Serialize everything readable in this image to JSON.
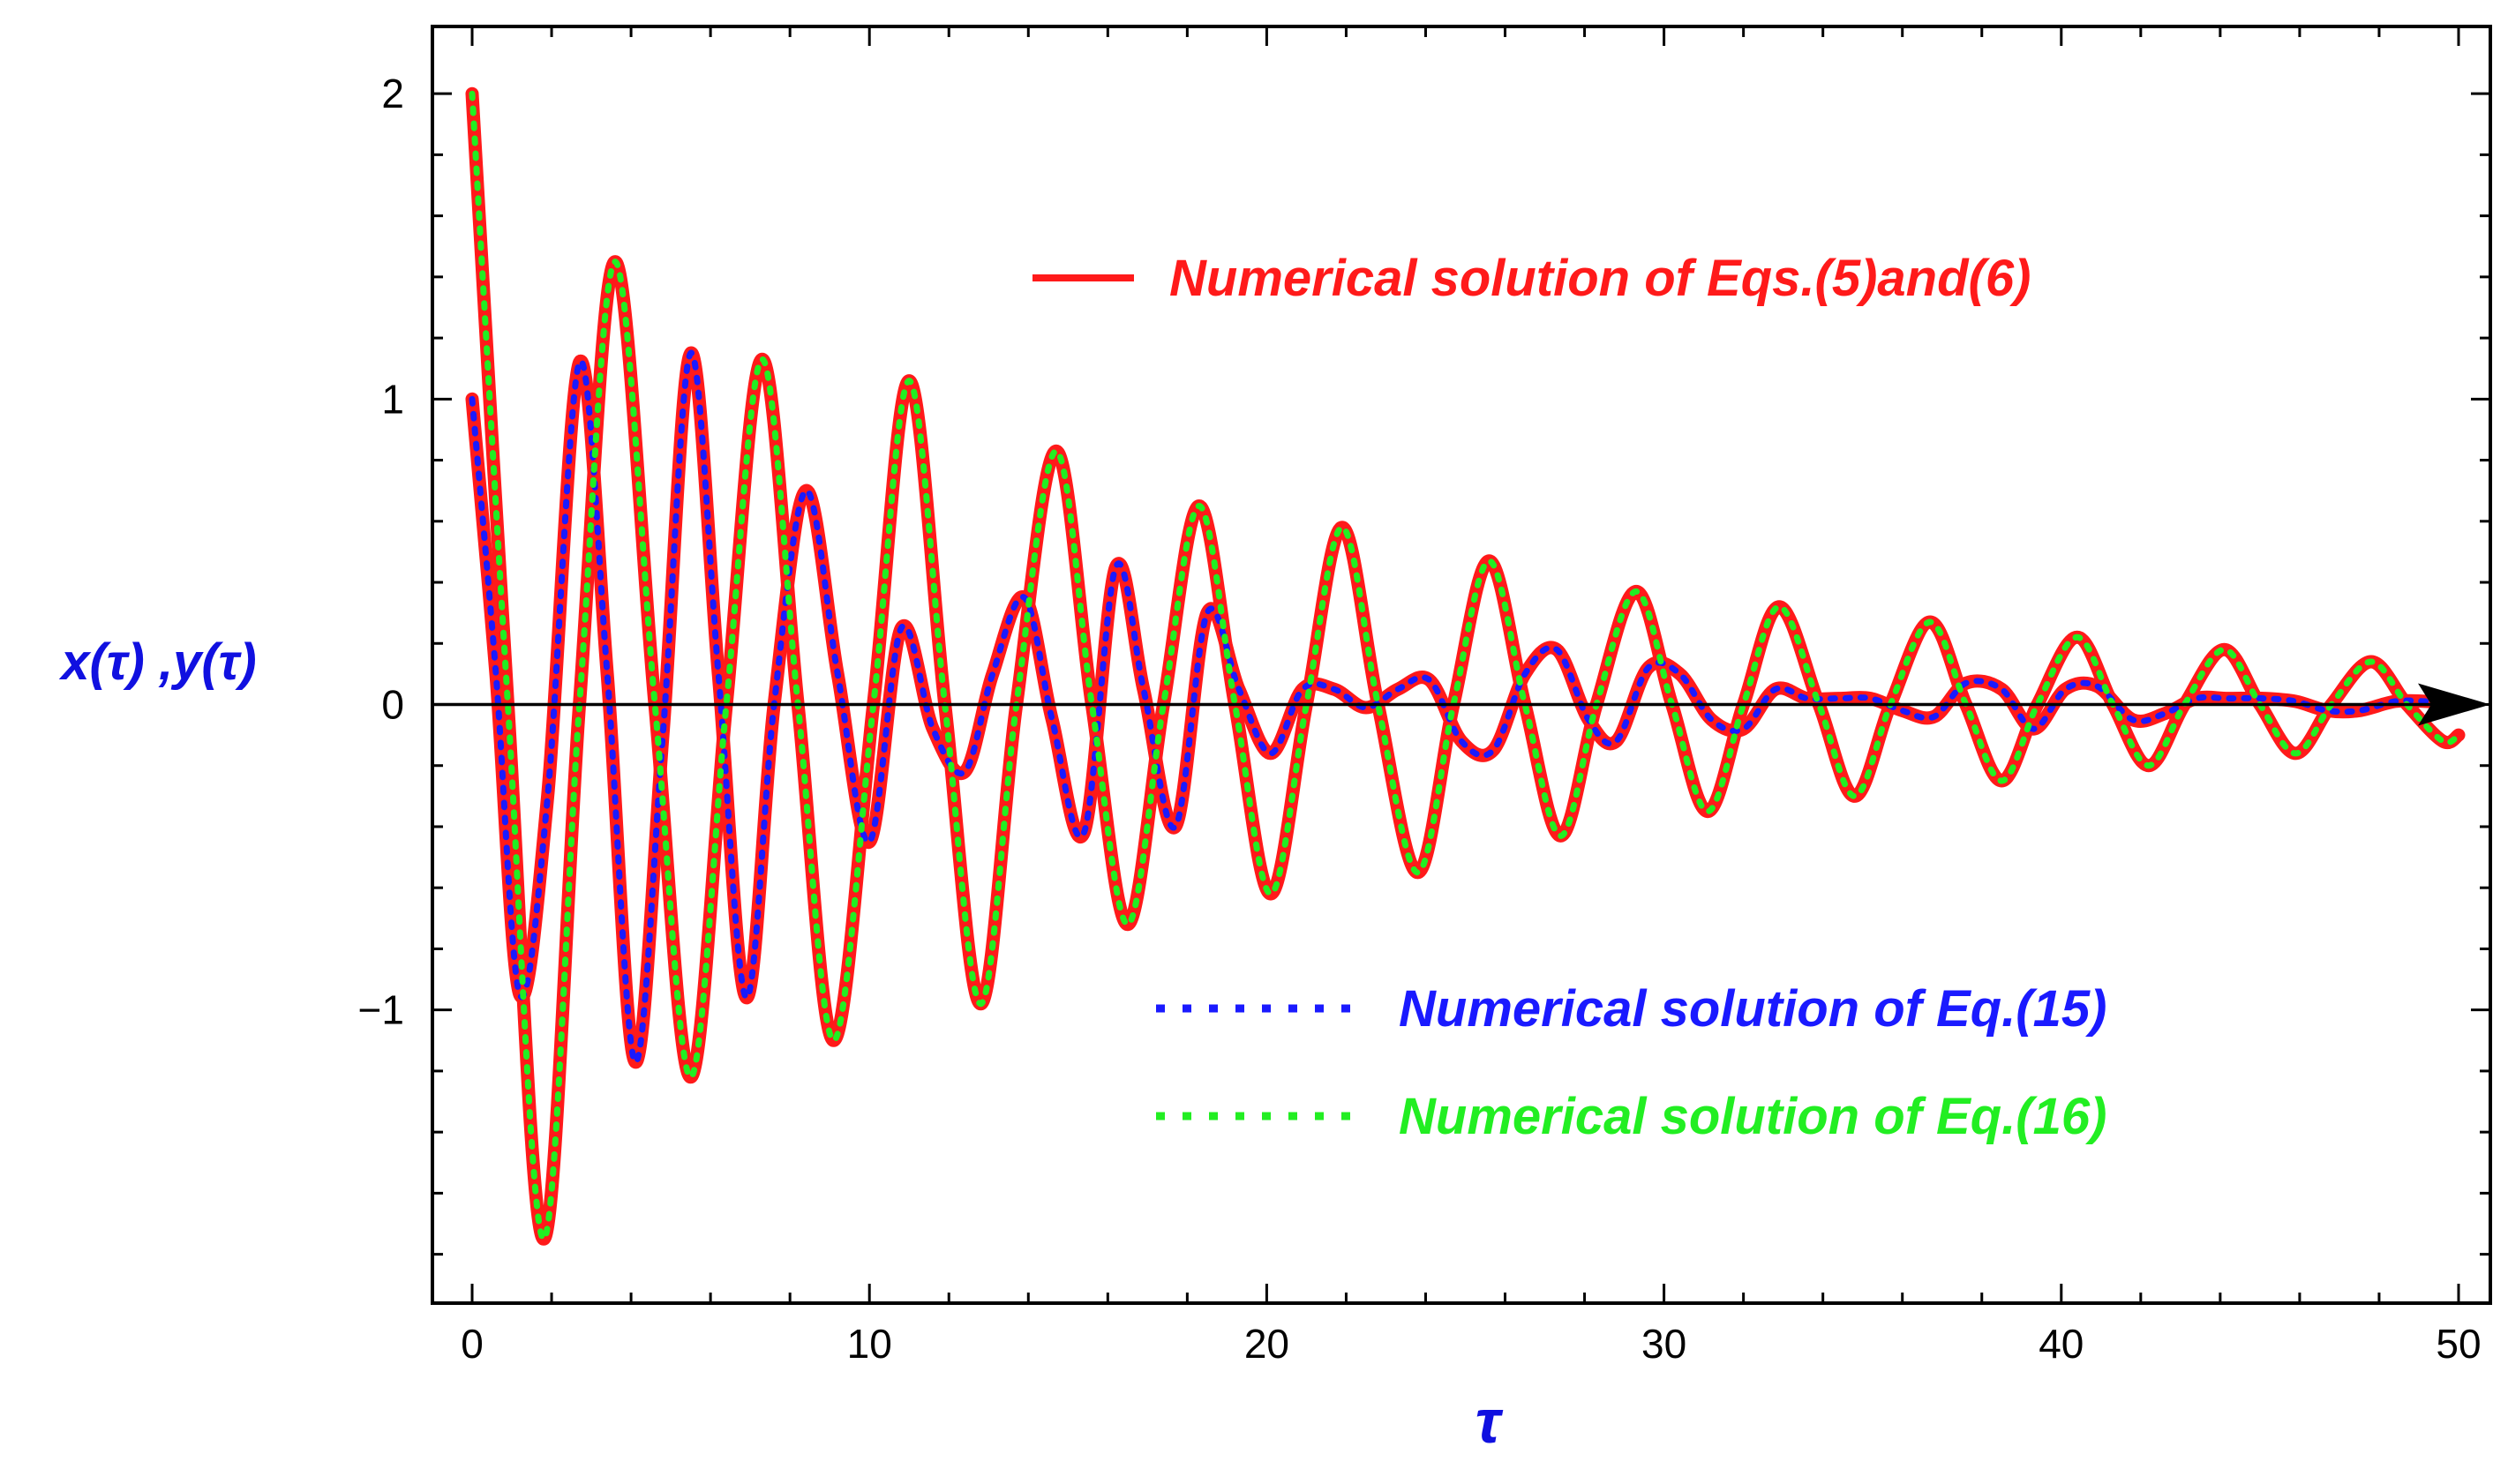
{
  "chart_data": {
    "type": "line",
    "title": "",
    "xlabel": "τ",
    "ylabel": "x(τ) ,y(τ)",
    "xlim": [
      -1,
      50.8
    ],
    "ylim": [
      -1.96,
      2.22
    ],
    "xticks": [
      0,
      10,
      20,
      30,
      40,
      50
    ],
    "xtick_labels": [
      "0",
      "10",
      "20",
      "30",
      "40",
      "50"
    ],
    "yticks": [
      2,
      1,
      0,
      -1
    ],
    "ytick_labels": [
      "2",
      "1",
      "0",
      "−1"
    ],
    "grid": false,
    "legend_placement": "inside, top-right and lower-right",
    "colors": {
      "red": "#ff1a1a",
      "blue": "#1a1aff",
      "green": "#22ee22",
      "axis": "#000000"
    },
    "series": [
      {
        "name": "Numerical solution of Eqs.(5)and(6)",
        "style": "solid",
        "color": "#ff1a1a",
        "components": [
          {
            "x": [
              0,
              0.6,
              1.2,
              1.9,
              2.7,
              3.4,
              4.1,
              4.8,
              5.5,
              6.2,
              6.9,
              7.6,
              8.4,
              9.2,
              10.0,
              10.8,
              11.6,
              12.4,
              13.1,
              13.9,
              14.6,
              15.4,
              16.2,
              16.9,
              17.7,
              18.5,
              19.3,
              20.1,
              20.9,
              21.7,
              22.5,
              23.3,
              24.1,
              24.9,
              25.7,
              26.5,
              27.3,
              28.1,
              28.8,
              29.6,
              30.4,
              31.2,
              32.0,
              32.8,
              33.6,
              34.4,
              35.2,
              36.0,
              36.8,
              37.6,
              38.5,
              39.3,
              40.1,
              40.9,
              41.8,
              42.6,
              43.4,
              44.2,
              45.1,
              45.9,
              46.7,
              47.5,
              48.4,
              49.2,
              50.0
            ],
            "y": [
              1.0,
              0.1,
              -0.95,
              -0.3,
              1.12,
              0.1,
              -1.17,
              -0.1,
              1.15,
              0.1,
              -0.96,
              0.0,
              0.7,
              0.1,
              -0.45,
              0.25,
              -0.08,
              -0.22,
              0.1,
              0.35,
              -0.05,
              -0.42,
              0.45,
              0.05,
              -0.4,
              0.3,
              0.05,
              -0.16,
              0.05,
              0.05,
              -0.01,
              0.05,
              0.08,
              -0.12,
              -0.15,
              0.1,
              0.18,
              -0.05,
              -0.12,
              0.12,
              0.1,
              -0.05,
              -0.08,
              0.05,
              0.02,
              0.02,
              0.02,
              -0.02,
              -0.04,
              0.07,
              0.05,
              -0.08,
              0.05,
              0.06,
              -0.05,
              -0.03,
              0.02,
              0.02,
              0.02,
              0.01,
              -0.02,
              -0.02,
              0.01,
              0.01,
              0.0
            ]
          },
          {
            "x": [
              0,
              0.9,
              1.8,
              2.7,
              3.6,
              4.6,
              5.5,
              6.4,
              7.3,
              8.2,
              9.1,
              10.1,
              11.0,
              11.9,
              12.8,
              13.7,
              14.7,
              15.6,
              16.5,
              17.4,
              18.3,
              19.2,
              20.1,
              21.0,
              21.9,
              22.8,
              23.8,
              24.7,
              25.6,
              26.5,
              27.4,
              28.3,
              29.3,
              30.2,
              31.1,
              32.0,
              32.9,
              33.9,
              34.8,
              35.7,
              36.7,
              37.6,
              38.5,
              39.4,
              40.4,
              41.3,
              42.2,
              43.1,
              44.1,
              45.0,
              45.9,
              46.8,
              47.8,
              48.7,
              49.6,
              50.0
            ],
            "y": [
              2.0,
              0.0,
              -1.75,
              0.0,
              1.45,
              0.0,
              -1.22,
              0.0,
              1.13,
              0.0,
              -1.1,
              0.0,
              1.06,
              0.0,
              -0.98,
              0.0,
              0.83,
              0.0,
              -0.72,
              0.0,
              0.65,
              0.0,
              -0.62,
              0.0,
              0.58,
              0.0,
              -0.55,
              0.0,
              0.47,
              0.0,
              -0.43,
              0.0,
              0.37,
              0.0,
              -0.35,
              0.0,
              0.32,
              0.0,
              -0.3,
              0.0,
              0.27,
              0.0,
              -0.25,
              0.0,
              0.22,
              0.0,
              -0.2,
              0.0,
              0.18,
              0.0,
              -0.16,
              0.0,
              0.14,
              0.0,
              -0.12,
              -0.1
            ]
          }
        ]
      },
      {
        "name": "Numerical solution of Eq.(15)",
        "style": "dotted",
        "color": "#1a1aff",
        "x": [
          0,
          0.6,
          1.2,
          1.9,
          2.7,
          3.4,
          4.1,
          4.8,
          5.5,
          6.2,
          6.9,
          7.6,
          8.4,
          9.2,
          10.0,
          10.8,
          11.6,
          12.4,
          13.1,
          13.9,
          14.6,
          15.4,
          16.2,
          16.9,
          17.7,
          18.5,
          19.3,
          20.1,
          20.9,
          21.7,
          22.5,
          23.3,
          24.1,
          24.9,
          25.7,
          26.5,
          27.3,
          28.1,
          28.8,
          29.6,
          30.4,
          31.2,
          32.0,
          32.8,
          33.6,
          34.4,
          35.2,
          36.0,
          36.8,
          37.6,
          38.5,
          39.3,
          40.1,
          40.9,
          41.8,
          42.6,
          43.4,
          44.2,
          45.1,
          45.9,
          46.7,
          47.5,
          48.4,
          49.2,
          50.0
        ],
        "y": [
          1.0,
          0.1,
          -0.95,
          -0.3,
          1.12,
          0.1,
          -1.17,
          -0.1,
          1.15,
          0.1,
          -0.96,
          0.0,
          0.7,
          0.1,
          -0.45,
          0.25,
          -0.08,
          -0.22,
          0.1,
          0.35,
          -0.05,
          -0.42,
          0.45,
          0.05,
          -0.4,
          0.3,
          0.05,
          -0.16,
          0.05,
          0.05,
          -0.01,
          0.05,
          0.08,
          -0.12,
          -0.15,
          0.1,
          0.18,
          -0.05,
          -0.12,
          0.12,
          0.1,
          -0.05,
          -0.08,
          0.05,
          0.02,
          0.02,
          0.02,
          -0.02,
          -0.04,
          0.07,
          0.05,
          -0.08,
          0.05,
          0.06,
          -0.05,
          -0.03,
          0.02,
          0.02,
          0.02,
          0.01,
          -0.02,
          -0.02,
          0.01,
          0.01,
          0.0
        ]
      },
      {
        "name": "Numerical solution of Eq.(16)",
        "style": "dotted",
        "color": "#22ee22",
        "x": [
          0,
          0.9,
          1.8,
          2.7,
          3.6,
          4.6,
          5.5,
          6.4,
          7.3,
          8.2,
          9.1,
          10.1,
          11.0,
          11.9,
          12.8,
          13.7,
          14.7,
          15.6,
          16.5,
          17.4,
          18.3,
          19.2,
          20.1,
          21.0,
          21.9,
          22.8,
          23.8,
          24.7,
          25.6,
          26.5,
          27.4,
          28.3,
          29.3,
          30.2,
          31.1,
          32.0,
          32.9,
          33.9,
          34.8,
          35.7,
          36.7,
          37.6,
          38.5,
          39.4,
          40.4,
          41.3,
          42.2,
          43.1,
          44.1,
          45.0,
          45.9,
          46.8,
          47.8,
          48.7,
          49.6,
          50.0
        ],
        "y": [
          2.0,
          0.0,
          -1.75,
          0.0,
          1.45,
          0.0,
          -1.22,
          0.0,
          1.13,
          0.0,
          -1.1,
          0.0,
          1.06,
          0.0,
          -0.98,
          0.0,
          0.83,
          0.0,
          -0.72,
          0.0,
          0.65,
          0.0,
          -0.62,
          0.0,
          0.58,
          0.0,
          -0.55,
          0.0,
          0.47,
          0.0,
          -0.43,
          0.0,
          0.37,
          0.0,
          -0.35,
          0.0,
          0.32,
          0.0,
          -0.3,
          0.0,
          0.27,
          0.0,
          -0.25,
          0.0,
          0.22,
          0.0,
          -0.2,
          0.0,
          0.18,
          0.0,
          -0.16,
          0.0,
          0.14,
          0.0,
          -0.12,
          -0.1
        ]
      }
    ]
  }
}
